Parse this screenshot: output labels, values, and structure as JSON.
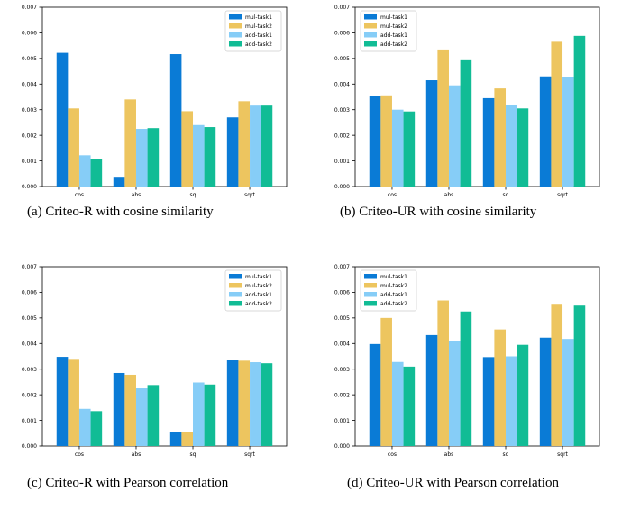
{
  "colors": {
    "mul-task1": "#0a7bd6",
    "mul-task2": "#edc55f",
    "add-task1": "#86cdf7",
    "add-task2": "#11bc95"
  },
  "chart_data": [
    {
      "type": "bar",
      "caption": "(a) Criteo-R with cosine similarity",
      "categories": [
        "cos",
        "abs",
        "sq",
        "sqrt"
      ],
      "ylim": [
        0,
        0.007
      ],
      "yticks": [
        "0.000",
        "0.001",
        "0.002",
        "0.003",
        "0.004",
        "0.005",
        "0.006",
        "0.007"
      ],
      "legend_position": "top-right",
      "series": [
        {
          "name": "mul-task1",
          "values": [
            0.00522,
            0.00038,
            0.00517,
            0.0027
          ]
        },
        {
          "name": "mul-task2",
          "values": [
            0.00305,
            0.0034,
            0.00294,
            0.00333
          ]
        },
        {
          "name": "add-task1",
          "values": [
            0.00122,
            0.00225,
            0.0024,
            0.00316
          ]
        },
        {
          "name": "add-task2",
          "values": [
            0.00108,
            0.00228,
            0.00232,
            0.00316
          ]
        }
      ]
    },
    {
      "type": "bar",
      "caption": "(b) Criteo-UR with cosine similarity",
      "categories": [
        "cos",
        "abs",
        "sq",
        "sqrt"
      ],
      "ylim": [
        0,
        0.007
      ],
      "yticks": [
        "0.000",
        "0.001",
        "0.002",
        "0.003",
        "0.004",
        "0.005",
        "0.006",
        "0.007"
      ],
      "legend_position": "top-left",
      "series": [
        {
          "name": "mul-task1",
          "values": [
            0.00355,
            0.00415,
            0.00345,
            0.0043
          ]
        },
        {
          "name": "mul-task2",
          "values": [
            0.00356,
            0.00535,
            0.00383,
            0.00565
          ]
        },
        {
          "name": "add-task1",
          "values": [
            0.003,
            0.00395,
            0.0032,
            0.00428
          ]
        },
        {
          "name": "add-task2",
          "values": [
            0.00293,
            0.00493,
            0.00305,
            0.00588
          ]
        }
      ]
    },
    {
      "type": "bar",
      "caption": "(c) Criteo-R with Pearson correlation",
      "categories": [
        "cos",
        "abs",
        "sq",
        "sqrt"
      ],
      "ylim": [
        0,
        0.007
      ],
      "yticks": [
        "0.000",
        "0.001",
        "0.002",
        "0.003",
        "0.004",
        "0.005",
        "0.006",
        "0.007"
      ],
      "legend_position": "top-right",
      "series": [
        {
          "name": "mul-task1",
          "values": [
            0.00348,
            0.00285,
            0.00053,
            0.00336
          ]
        },
        {
          "name": "mul-task2",
          "values": [
            0.0034,
            0.00278,
            0.00053,
            0.00333
          ]
        },
        {
          "name": "add-task1",
          "values": [
            0.00145,
            0.00225,
            0.00248,
            0.00327
          ]
        },
        {
          "name": "add-task2",
          "values": [
            0.00136,
            0.00238,
            0.0024,
            0.00323
          ]
        }
      ]
    },
    {
      "type": "bar",
      "caption": "(d) Criteo-UR with Pearson correlation",
      "categories": [
        "cos",
        "abs",
        "sq",
        "sqrt"
      ],
      "ylim": [
        0,
        0.007
      ],
      "yticks": [
        "0.000",
        "0.001",
        "0.002",
        "0.003",
        "0.004",
        "0.005",
        "0.006",
        "0.007"
      ],
      "legend_position": "top-left",
      "series": [
        {
          "name": "mul-task1",
          "values": [
            0.00398,
            0.00433,
            0.00347,
            0.00423
          ]
        },
        {
          "name": "mul-task2",
          "values": [
            0.005,
            0.00568,
            0.00455,
            0.00555
          ]
        },
        {
          "name": "add-task1",
          "values": [
            0.00328,
            0.0041,
            0.0035,
            0.00418
          ]
        },
        {
          "name": "add-task2",
          "values": [
            0.0031,
            0.00525,
            0.00395,
            0.00548
          ]
        }
      ]
    }
  ]
}
